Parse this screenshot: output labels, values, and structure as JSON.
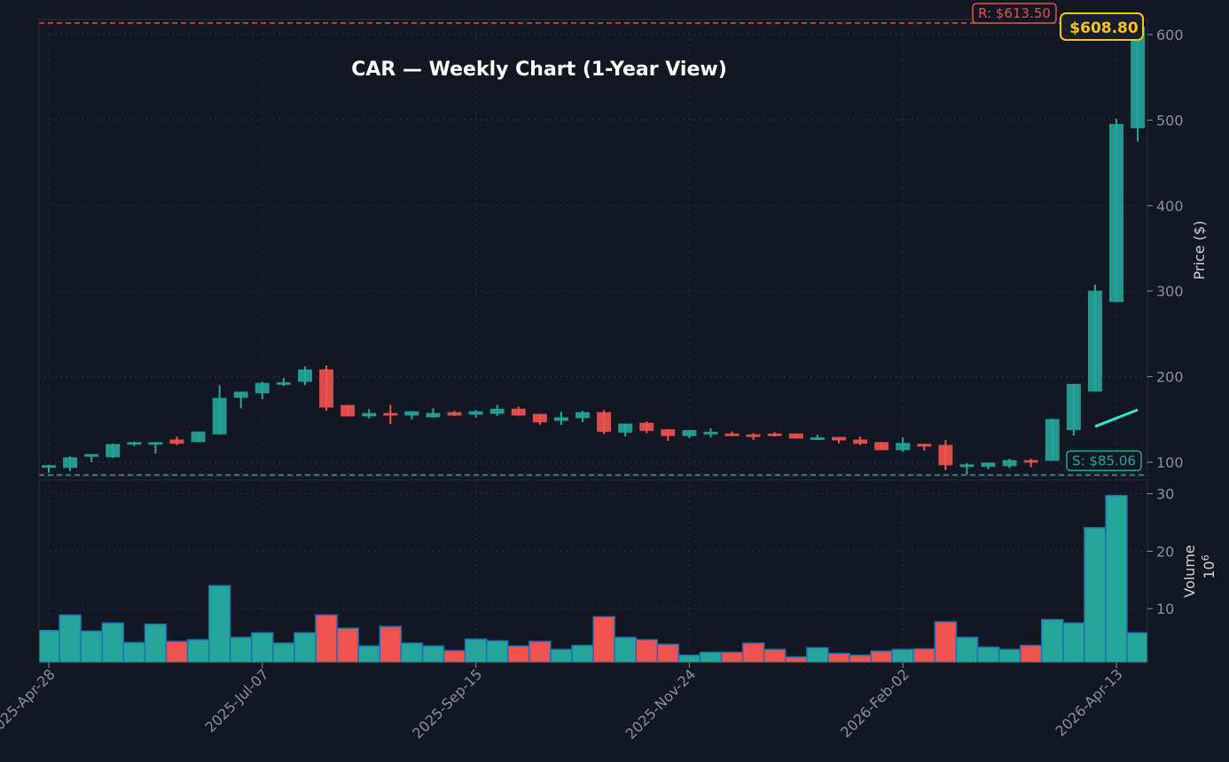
{
  "chart_data": {
    "type": "candlestick",
    "title": "CAR — Weekly Chart (1-Year View)",
    "ylabel": "Price ($)",
    "volume_label": "Volume",
    "volume_multiplier": "10^6",
    "price_ylim": [
      83.4,
      614.5
    ],
    "volume_ylim": [
      0.6,
      31.8
    ],
    "price_ticks": [
      100,
      200,
      300,
      400,
      500,
      600
    ],
    "volume_ticks": [
      10,
      20,
      30
    ],
    "x_ticks": [
      {
        "index": 0,
        "label": "2025-Apr-28"
      },
      {
        "index": 10,
        "label": "2025-Jul-07"
      },
      {
        "index": 20,
        "label": "2025-Sep-15"
      },
      {
        "index": 30,
        "label": "2025-Nov-24"
      },
      {
        "index": 40,
        "label": "2026-Feb-02"
      },
      {
        "index": 50,
        "label": "2026-Apr-13"
      }
    ],
    "grid": true,
    "colors": {
      "background": "#131722",
      "up": "#26a69a",
      "down": "#ef5350",
      "volume_edge": "#1f6fb4",
      "ma": "#2ee6d0",
      "resistance": "#e05252",
      "support": "#26a69a",
      "last_price": "#f5c518",
      "grid": "#2a2e39"
    },
    "ohlc": [
      [
        95,
        96,
        97,
        87.6
      ],
      [
        93.8,
        105.2,
        107,
        89.6
      ],
      [
        108,
        109,
        109,
        100
      ],
      [
        106.2,
        120.7,
        121.8,
        105
      ],
      [
        122,
        123,
        124,
        118.7
      ],
      [
        122,
        123,
        123,
        110
      ],
      [
        126,
        122,
        130,
        120
      ],
      [
        123.9,
        135.3,
        135.5,
        123.5
      ],
      [
        133,
        174.7,
        190,
        132.5
      ],
      [
        175.7,
        182,
        182.5,
        163
      ],
      [
        181,
        192.3,
        194,
        173.6
      ],
      [
        191,
        193,
        198.5,
        189
      ],
      [
        194.4,
        207.9,
        212,
        190
      ],
      [
        208,
        164.3,
        213,
        160
      ],
      [
        166.4,
        154,
        166.5,
        153.5
      ],
      [
        154,
        157,
        162,
        151
      ],
      [
        157,
        156,
        167,
        144.6
      ],
      [
        155,
        159,
        159.5,
        150
      ],
      [
        153,
        157,
        163,
        152
      ],
      [
        158,
        155,
        160,
        154
      ],
      [
        156,
        159,
        161,
        152
      ],
      [
        157,
        162,
        167,
        154
      ],
      [
        162,
        155,
        165,
        154.5
      ],
      [
        156,
        147,
        156.5,
        143.5
      ],
      [
        148.8,
        152,
        159,
        143.6
      ],
      [
        152,
        158,
        160,
        146.7
      ],
      [
        158,
        136,
        161,
        133
      ],
      [
        135,
        144.6,
        145,
        130
      ],
      [
        145.6,
        137,
        147.7,
        134
      ],
      [
        138,
        131,
        138.5,
        125
      ],
      [
        131,
        137,
        137.5,
        128
      ],
      [
        133,
        135,
        139.4,
        129
      ],
      [
        133,
        131,
        136,
        130.5
      ],
      [
        132,
        130,
        134,
        126
      ],
      [
        133,
        132,
        135,
        130
      ],
      [
        133,
        128,
        133.5,
        127.5
      ],
      [
        127.5,
        128.5,
        132,
        126
      ],
      [
        129,
        126,
        129.5,
        122
      ],
      [
        126,
        122,
        130,
        120
      ],
      [
        123,
        114.5,
        123.5,
        114
      ],
      [
        114.5,
        122,
        129,
        112
      ],
      [
        121,
        118.7,
        121.5,
        113.5
      ],
      [
        119.7,
        96.9,
        126,
        90.7
      ],
      [
        95,
        97,
        99,
        85.5
      ],
      [
        95,
        99,
        99.5,
        91.7
      ],
      [
        95.8,
        102,
        104,
        93
      ],
      [
        102,
        100,
        104,
        94
      ],
      [
        102,
        150,
        151,
        101.5
      ],
      [
        138,
        191,
        191.5,
        131
      ],
      [
        183,
        300,
        307.5,
        182.5
      ],
      [
        287.8,
        495,
        501.5,
        287
      ],
      [
        491,
        608.8,
        613.5,
        475
      ]
    ],
    "volume": [
      6.2,
      8.9,
      6.1,
      7.5,
      4.1,
      7.3,
      4.3,
      4.6,
      14.0,
      5.0,
      5.8,
      4.0,
      5.8,
      8.9,
      6.6,
      3.5,
      6.9,
      4.0,
      3.5,
      2.7,
      4.7,
      4.4,
      3.5,
      4.3,
      2.9,
      3.6,
      8.6,
      5.0,
      4.6,
      3.8,
      1.9,
      2.4,
      2.4,
      4.0,
      2.9,
      1.6,
      3.2,
      2.2,
      1.9,
      2.6,
      2.9,
      3.0,
      7.7,
      5.0,
      3.3,
      2.9,
      3.6,
      8.1,
      7.5,
      24.1,
      29.7,
      5.8
    ],
    "moving_average": {
      "start_index": 49,
      "values": [
        141.7,
        151.5,
        161.2
      ]
    },
    "resistance": {
      "value": 613.5,
      "label": "R: $613.50"
    },
    "support": {
      "value": 85.06,
      "label": "S: $85.06"
    },
    "last_price": {
      "value": 608.8,
      "label": "$608.80"
    }
  }
}
